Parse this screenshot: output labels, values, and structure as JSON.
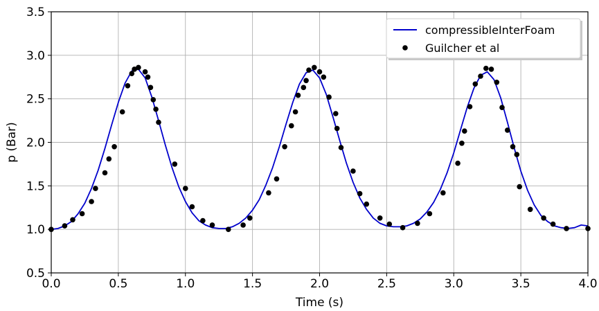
{
  "chart_data": {
    "type": "line",
    "xlabel": "Time (s)",
    "ylabel": "p (Bar)",
    "xlim": [
      0.0,
      4.0
    ],
    "ylim": [
      0.5,
      3.5
    ],
    "x_ticks": [
      "0.0",
      "0.5",
      "1.0",
      "1.5",
      "2.0",
      "2.5",
      "3.0",
      "3.5",
      "4.0"
    ],
    "y_ticks": [
      "0.5",
      "1.0",
      "1.5",
      "2.0",
      "2.5",
      "3.0",
      "3.5"
    ],
    "grid": true,
    "legend_position": "top-right",
    "series": [
      {
        "name": "compressibleInterFoam",
        "kind": "line",
        "color": "#0000cc",
        "x": [
          0.0,
          0.05,
          0.1,
          0.15,
          0.2,
          0.25,
          0.3,
          0.35,
          0.4,
          0.45,
          0.5,
          0.55,
          0.6,
          0.65,
          0.7,
          0.75,
          0.8,
          0.85,
          0.9,
          0.95,
          1.0,
          1.05,
          1.1,
          1.15,
          1.2,
          1.25,
          1.3,
          1.35,
          1.4,
          1.45,
          1.5,
          1.55,
          1.6,
          1.65,
          1.7,
          1.75,
          1.8,
          1.85,
          1.9,
          1.95,
          2.0,
          2.05,
          2.1,
          2.15,
          2.2,
          2.25,
          2.3,
          2.35,
          2.4,
          2.45,
          2.5,
          2.55,
          2.6,
          2.65,
          2.7,
          2.75,
          2.8,
          2.85,
          2.9,
          2.95,
          3.0,
          3.05,
          3.1,
          3.15,
          3.2,
          3.25,
          3.3,
          3.35,
          3.4,
          3.45,
          3.5,
          3.55,
          3.6,
          3.65,
          3.7,
          3.75,
          3.8,
          3.85,
          3.9,
          3.95,
          4.0
        ],
        "y": [
          1.0,
          1.01,
          1.04,
          1.09,
          1.18,
          1.3,
          1.47,
          1.68,
          1.93,
          2.2,
          2.46,
          2.68,
          2.82,
          2.84,
          2.74,
          2.52,
          2.25,
          1.97,
          1.71,
          1.49,
          1.32,
          1.19,
          1.1,
          1.05,
          1.02,
          1.01,
          1.01,
          1.03,
          1.07,
          1.13,
          1.22,
          1.34,
          1.51,
          1.71,
          1.95,
          2.21,
          2.46,
          2.67,
          2.8,
          2.83,
          2.74,
          2.55,
          2.29,
          2.02,
          1.76,
          1.54,
          1.36,
          1.23,
          1.13,
          1.07,
          1.04,
          1.03,
          1.03,
          1.04,
          1.07,
          1.12,
          1.2,
          1.31,
          1.46,
          1.65,
          1.88,
          2.14,
          2.4,
          2.62,
          2.77,
          2.81,
          2.72,
          2.51,
          2.23,
          1.94,
          1.67,
          1.45,
          1.28,
          1.16,
          1.09,
          1.04,
          1.02,
          1.01,
          1.02,
          1.05,
          1.04
        ]
      },
      {
        "name": "Guilcher et al",
        "kind": "scatter",
        "color": "#000000",
        "x": [
          0.0,
          0.1,
          0.16,
          0.23,
          0.3,
          0.33,
          0.4,
          0.43,
          0.47,
          0.53,
          0.57,
          0.6,
          0.62,
          0.65,
          0.7,
          0.72,
          0.74,
          0.76,
          0.78,
          0.8,
          0.92,
          1.0,
          1.05,
          1.13,
          1.2,
          1.32,
          1.43,
          1.48,
          1.62,
          1.68,
          1.74,
          1.79,
          1.82,
          1.84,
          1.88,
          1.9,
          1.92,
          1.96,
          2.0,
          2.03,
          2.07,
          2.12,
          2.13,
          2.16,
          2.25,
          2.3,
          2.35,
          2.45,
          2.52,
          2.62,
          2.73,
          2.82,
          2.92,
          3.03,
          3.06,
          3.08,
          3.12,
          3.16,
          3.2,
          3.24,
          3.28,
          3.32,
          3.36,
          3.4,
          3.44,
          3.47,
          3.49,
          3.57,
          3.67,
          3.74,
          3.84,
          4.0
        ],
        "y": [
          1.0,
          1.04,
          1.11,
          1.18,
          1.32,
          1.47,
          1.65,
          1.81,
          1.95,
          2.35,
          2.65,
          2.79,
          2.84,
          2.86,
          2.81,
          2.75,
          2.63,
          2.49,
          2.38,
          2.23,
          1.75,
          1.47,
          1.26,
          1.1,
          1.05,
          1.0,
          1.05,
          1.13,
          1.42,
          1.58,
          1.95,
          2.19,
          2.35,
          2.54,
          2.63,
          2.71,
          2.83,
          2.86,
          2.81,
          2.75,
          2.52,
          2.33,
          2.16,
          1.94,
          1.67,
          1.41,
          1.29,
          1.13,
          1.06,
          1.02,
          1.07,
          1.18,
          1.42,
          1.76,
          1.99,
          2.13,
          2.41,
          2.67,
          2.76,
          2.85,
          2.84,
          2.69,
          2.4,
          2.14,
          1.95,
          1.86,
          1.49,
          1.23,
          1.13,
          1.06,
          1.01,
          1.01
        ]
      }
    ]
  }
}
